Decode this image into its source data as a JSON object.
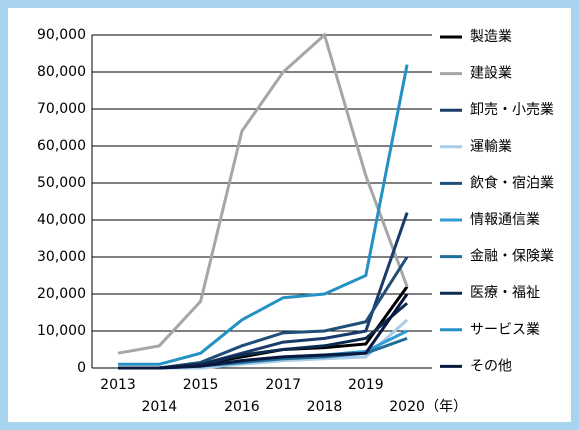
{
  "chart_data": {
    "type": "line",
    "categories": [
      "2013",
      "2014",
      "2015",
      "2016",
      "2017",
      "2018",
      "2019",
      "2020"
    ],
    "x_unit": "（年）",
    "ylim": [
      0,
      90000
    ],
    "yticks": [
      0,
      {
        "value": 10000,
        "label": "10,000"
      },
      {
        "value": 20000,
        "label": "20,000"
      },
      {
        "value": 30000,
        "label": "30,000"
      },
      {
        "value": 40000,
        "label": "40,000"
      },
      {
        "value": 50000,
        "label": "50,000"
      },
      {
        "value": 60000,
        "label": "60,000"
      },
      {
        "value": 70000,
        "label": "70,000"
      },
      {
        "value": 80000,
        "label": "80,000"
      },
      {
        "value": 90000,
        "label": "90,000"
      }
    ],
    "grid": true,
    "series": [
      {
        "name": "製造業",
        "color": "#000000",
        "values": [
          0,
          0,
          1000,
          3000,
          5000,
          5500,
          6500,
          22000
        ]
      },
      {
        "name": "建設業",
        "color": "#a6a6a6",
        "values": [
          4000,
          6000,
          18000,
          64000,
          80000,
          90000,
          52000,
          22000
        ]
      },
      {
        "name": "卸売・小売業",
        "color": "#1a3a6a",
        "values": [
          0,
          0,
          1000,
          4000,
          7000,
          8000,
          10000,
          42000
        ]
      },
      {
        "name": "運輸業",
        "color": "#a9cce8",
        "values": [
          0,
          0,
          0,
          1000,
          2000,
          2500,
          3000,
          13000
        ]
      },
      {
        "name": "飲食・宿泊業",
        "color": "#1f4e79",
        "values": [
          0,
          0,
          1500,
          6000,
          9500,
          10000,
          12500,
          30000
        ]
      },
      {
        "name": "情報通信業",
        "color": "#2e9bd6",
        "values": [
          0,
          0,
          500,
          2000,
          3000,
          3500,
          4500,
          10000
        ]
      },
      {
        "name": "金融・保険業",
        "color": "#1f6d99",
        "values": [
          0,
          0,
          500,
          1500,
          2500,
          3000,
          4000,
          8000
        ]
      },
      {
        "name": "医療・福祉",
        "color": "#0d2b4f",
        "values": [
          0,
          0,
          1000,
          3500,
          5000,
          6000,
          8000,
          17500
        ]
      },
      {
        "name": "サービス業",
        "color": "#2391c4",
        "values": [
          1000,
          1000,
          4000,
          13000,
          19000,
          20000,
          25000,
          82000
        ]
      },
      {
        "name": "その他",
        "color": "#0a1840",
        "values": [
          0,
          0,
          500,
          2000,
          3000,
          3500,
          4000,
          20000
        ]
      }
    ]
  }
}
